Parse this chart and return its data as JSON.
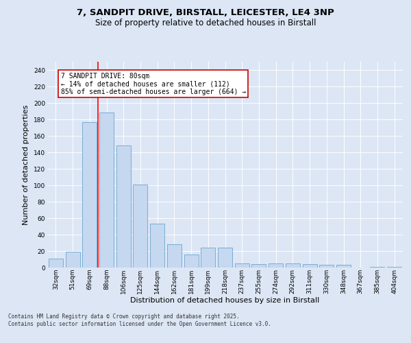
{
  "title_line1": "7, SANDPIT DRIVE, BIRSTALL, LEICESTER, LE4 3NP",
  "title_line2": "Size of property relative to detached houses in Birstall",
  "xlabel": "Distribution of detached houses by size in Birstall",
  "ylabel": "Number of detached properties",
  "categories": [
    "32sqm",
    "51sqm",
    "69sqm",
    "88sqm",
    "106sqm",
    "125sqm",
    "144sqm",
    "162sqm",
    "181sqm",
    "199sqm",
    "218sqm",
    "237sqm",
    "255sqm",
    "274sqm",
    "292sqm",
    "311sqm",
    "330sqm",
    "348sqm",
    "367sqm",
    "385sqm",
    "404sqm"
  ],
  "values": [
    11,
    19,
    177,
    188,
    148,
    101,
    53,
    28,
    16,
    24,
    24,
    5,
    4,
    5,
    5,
    4,
    3,
    3,
    0,
    1,
    1
  ],
  "bar_color": "#c5d8f0",
  "bar_edge_color": "#7aadd4",
  "red_line_x": 2.5,
  "annotation_text": "7 SANDPIT DRIVE: 80sqm\n← 14% of detached houses are smaller (112)\n85% of semi-detached houses are larger (664) →",
  "annotation_box_color": "white",
  "annotation_box_edge_color": "#cc0000",
  "ylim": [
    0,
    250
  ],
  "yticks": [
    0,
    20,
    40,
    60,
    80,
    100,
    120,
    140,
    160,
    180,
    200,
    220,
    240
  ],
  "background_color": "#dce6f5",
  "plot_bg_color": "#dce6f5",
  "footer_text": "Contains HM Land Registry data © Crown copyright and database right 2025.\nContains public sector information licensed under the Open Government Licence v3.0.",
  "title_fontsize": 9.5,
  "subtitle_fontsize": 8.5,
  "tick_fontsize": 6.5,
  "label_fontsize": 8,
  "annotation_fontsize": 7,
  "footer_fontsize": 5.5
}
